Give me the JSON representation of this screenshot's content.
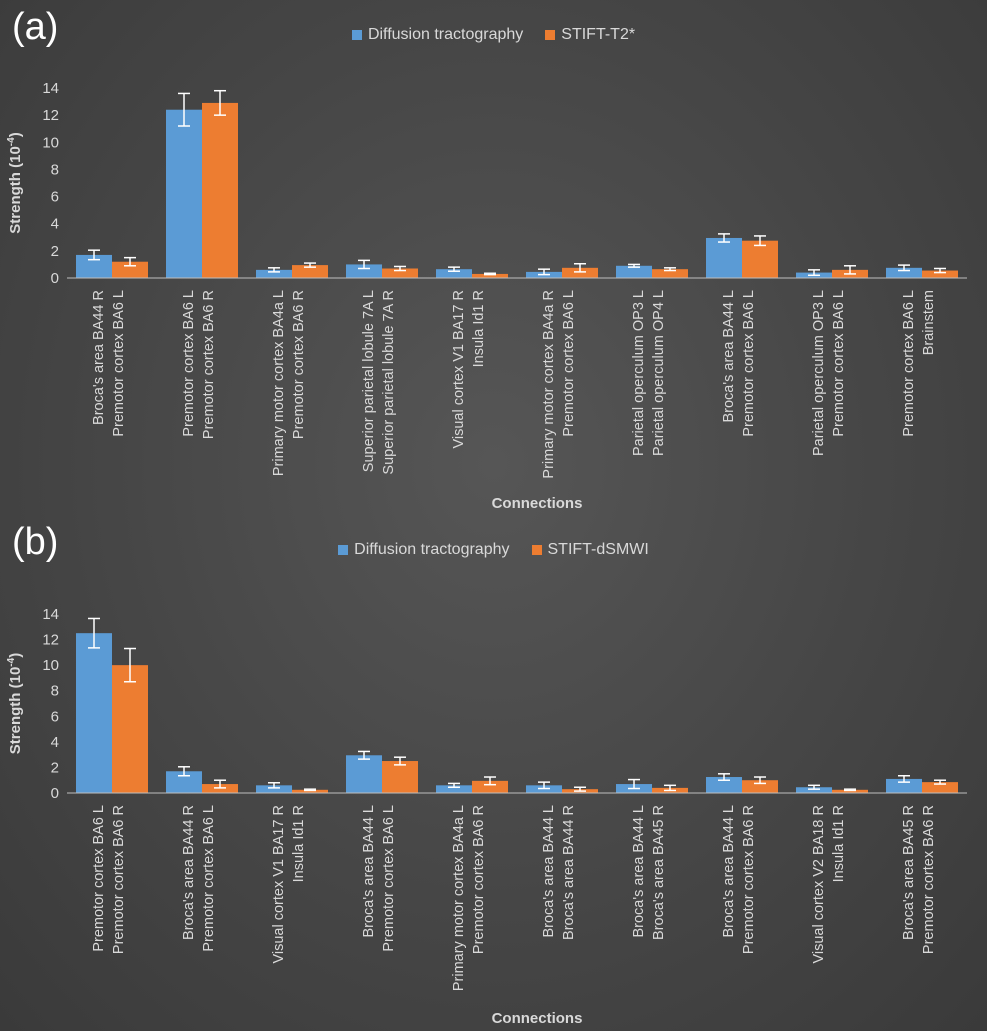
{
  "colors": {
    "series1": "#5b9bd5",
    "series2": "#ed7d31",
    "axis": "#bfbfbf",
    "text": "#d9d9d9",
    "background": "#474747"
  },
  "chart_data": [
    {
      "type": "bar",
      "panel_label": "(a)",
      "ylabel": "Strength (10",
      "ylabel_exp": "-4",
      "ylabel_close": ")",
      "xlabel": "Connections",
      "ylim": [
        0,
        14
      ],
      "yticks": [
        "0",
        "2",
        "4",
        "6",
        "8",
        "10",
        "12",
        "14"
      ],
      "categories": [
        [
          "Broca's area BA44 R",
          "Premotor cortex BA6 L"
        ],
        [
          "Premotor cortex BA6 L",
          "Premotor cortex BA6 R"
        ],
        [
          "Primary motor cortex BA4a L",
          "Premotor cortex BA6 R"
        ],
        [
          "Superior parietal lobule 7A L",
          "Superior parietal lobule 7A R"
        ],
        [
          "Visual cortex V1 BA17 R",
          "Insula Id1 R"
        ],
        [
          "Primary motor cortex BA4a R",
          "Premotor cortex BA6 L"
        ],
        [
          "Parietal operculum OP3 L",
          "Parietal operculum OP4 L"
        ],
        [
          "Broca's area BA44 L",
          "Premotor cortex BA6 L"
        ],
        [
          "Parietal operculum OP3 L",
          "Premotor cortex BA6 L"
        ],
        [
          "Premotor cortex BA6 L",
          "Brainstem"
        ]
      ],
      "series": [
        {
          "name": "Diffusion tractography",
          "values": [
            1.7,
            12.4,
            0.6,
            1.0,
            0.65,
            0.45,
            0.9,
            2.95,
            0.4,
            0.75
          ],
          "errors": [
            0.35,
            1.2,
            0.15,
            0.3,
            0.15,
            0.2,
            0.1,
            0.3,
            0.2,
            0.2
          ]
        },
        {
          "name": "STIFT-T2*",
          "values": [
            1.2,
            12.9,
            0.95,
            0.7,
            0.3,
            0.75,
            0.65,
            2.75,
            0.6,
            0.55
          ],
          "errors": [
            0.3,
            0.9,
            0.15,
            0.15,
            0.05,
            0.3,
            0.1,
            0.35,
            0.3,
            0.15
          ]
        }
      ]
    },
    {
      "type": "bar",
      "panel_label": "(b)",
      "ylabel": "Strength (10",
      "ylabel_exp": "-4",
      "ylabel_close": ")",
      "xlabel": "Connections",
      "ylim": [
        0,
        14
      ],
      "yticks": [
        "0",
        "2",
        "4",
        "6",
        "8",
        "10",
        "12",
        "14"
      ],
      "categories": [
        [
          "Premotor cortex BA6 L",
          "Premotor cortex BA6 R"
        ],
        [
          "Broca's area BA44 R",
          "Premotor cortex BA6 L"
        ],
        [
          "Visual cortex V1 BA17 R",
          "Insula Id1 R"
        ],
        [
          "Broca's area BA44 L",
          "Premotor cortex BA6 L"
        ],
        [
          "Primary motor cortex BA4a L",
          "Premotor cortex BA6 R"
        ],
        [
          "Broca's area BA44 L",
          "Broca's area BA44 R"
        ],
        [
          "Broca's area BA44 L",
          "Broca's area BA45 R"
        ],
        [
          "Broca's area BA44 L",
          "Premotor cortex BA6 R"
        ],
        [
          "Visual cortex V2 BA18 R",
          "Insula Id1 R"
        ],
        [
          "Broca's area BA45 R",
          "Premotor cortex BA6 R"
        ]
      ],
      "series": [
        {
          "name": "Diffusion tractography",
          "values": [
            12.5,
            1.7,
            0.6,
            2.95,
            0.6,
            0.6,
            0.7,
            1.25,
            0.45,
            1.1
          ],
          "errors": [
            1.15,
            0.35,
            0.2,
            0.3,
            0.15,
            0.25,
            0.35,
            0.25,
            0.15,
            0.25
          ]
        },
        {
          "name": "STIFT-dSMWI",
          "values": [
            10.0,
            0.7,
            0.25,
            2.5,
            0.95,
            0.3,
            0.4,
            1.0,
            0.25,
            0.85
          ],
          "errors": [
            1.3,
            0.3,
            0.05,
            0.3,
            0.3,
            0.15,
            0.2,
            0.25,
            0.05,
            0.15
          ]
        }
      ]
    }
  ]
}
